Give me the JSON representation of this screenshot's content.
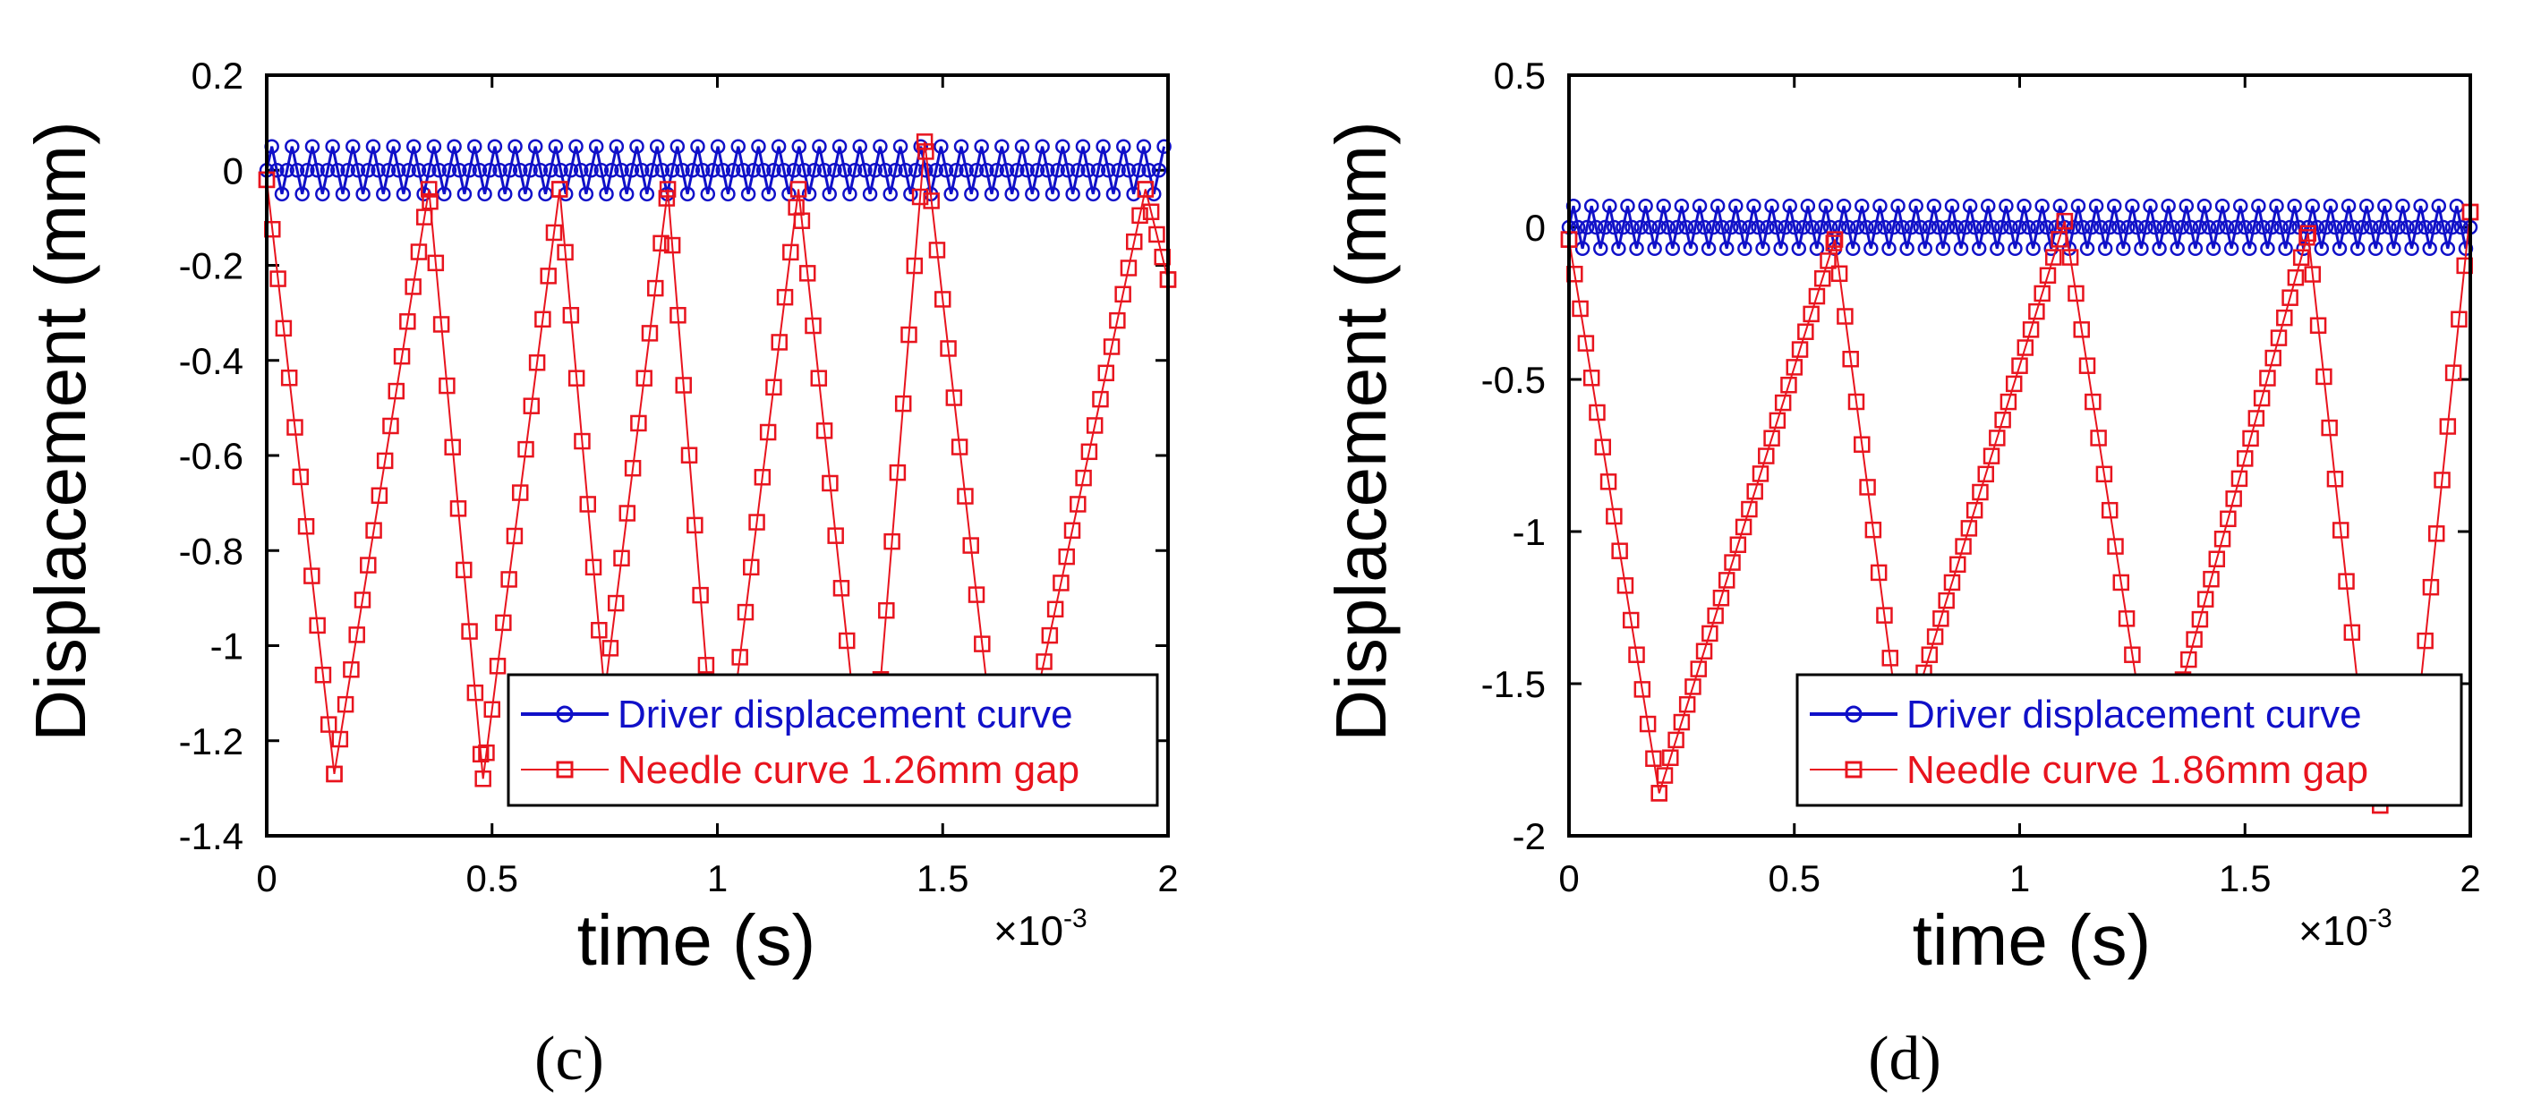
{
  "chart_data": [
    {
      "type": "line",
      "panel_label": "(c)",
      "xlabel": "time (s)",
      "ylabel": "Displacement (mm)",
      "x_multiplier": "×10",
      "x_multiplier_exp": "-3",
      "xlim": [
        0,
        2
      ],
      "ylim": [
        -1.4,
        0.2
      ],
      "xticks": [
        0,
        0.5,
        1,
        1.5,
        2
      ],
      "xtick_labels": [
        "0",
        "0.5",
        "1",
        "1.5",
        "2"
      ],
      "yticks": [
        0.2,
        0,
        -0.2,
        -0.4,
        -0.6,
        -0.8,
        -1,
        -1.2,
        -1.4
      ],
      "ytick_labels": [
        "0.2",
        "0",
        "-0.2",
        "-0.4",
        "-0.6",
        "-0.8",
        "-1",
        "-1.2",
        "-1.4"
      ],
      "grid": false,
      "legend_position": "bottom-right",
      "series": [
        {
          "name": "Driver displacement curve",
          "color": "#1010c8",
          "marker": "circle",
          "function": "sine",
          "amplitude": 0.05,
          "period": 0.045,
          "x_start": 0,
          "x_end": 2,
          "x_step": 0.01125
        },
        {
          "name": "Needle curve 1.26mm gap",
          "color": "#e8141e",
          "marker": "square",
          "x_step": 0.0125,
          "keypoints": [
            [
              0,
              -0.02
            ],
            [
              0.15,
              -1.27
            ],
            [
              0.36,
              -0.04
            ],
            [
              0.48,
              -1.28
            ],
            [
              0.65,
              -0.04
            ],
            [
              0.75,
              -1.1
            ],
            [
              0.89,
              -0.04
            ],
            [
              0.98,
              -1.1
            ],
            [
              1.04,
              -1.1
            ],
            [
              1.18,
              -0.04
            ],
            [
              1.3,
              -1.1
            ],
            [
              1.36,
              -1.1
            ],
            [
              1.46,
              0.06
            ],
            [
              1.6,
              -1.1
            ],
            [
              1.71,
              -1.1
            ],
            [
              1.95,
              -0.04
            ],
            [
              2.0,
              -0.23
            ]
          ]
        }
      ]
    },
    {
      "type": "line",
      "panel_label": "(d)",
      "xlabel": "time (s)",
      "ylabel": "Displacement (mm)",
      "x_multiplier": "×10",
      "x_multiplier_exp": "-3",
      "xlim": [
        0,
        2
      ],
      "ylim": [
        -2,
        0.5
      ],
      "xticks": [
        0,
        0.5,
        1,
        1.5,
        2
      ],
      "xtick_labels": [
        "0",
        "0.5",
        "1",
        "1.5",
        "2"
      ],
      "yticks": [
        0.5,
        0,
        -0.5,
        -1,
        -1.5,
        -2
      ],
      "ytick_labels": [
        "0.5",
        "0",
        "-0.5",
        "-1",
        "-1.5",
        "-2"
      ],
      "grid": false,
      "legend_position": "bottom-right",
      "series": [
        {
          "name": "Driver displacement curve",
          "color": "#1010c8",
          "marker": "circle",
          "function": "sine",
          "amplitude": 0.07,
          "period": 0.04,
          "x_start": 0,
          "x_end": 2,
          "x_step": 0.01
        },
        {
          "name": "Needle curve 1.86mm gap",
          "color": "#e8141e",
          "marker": "square",
          "x_step": 0.0125,
          "keypoints": [
            [
              0,
              -0.04
            ],
            [
              0.2,
              -1.86
            ],
            [
              0.59,
              -0.04
            ],
            [
              0.72,
              -1.5
            ],
            [
              0.78,
              -1.5
            ],
            [
              1.1,
              0.02
            ],
            [
              1.26,
              -1.5
            ],
            [
              1.36,
              -1.5
            ],
            [
              1.64,
              -0.02
            ],
            [
              1.75,
              -1.5
            ],
            [
              1.8,
              -1.9
            ],
            [
              1.89,
              -1.5
            ],
            [
              2.0,
              0.05
            ]
          ]
        }
      ]
    }
  ]
}
